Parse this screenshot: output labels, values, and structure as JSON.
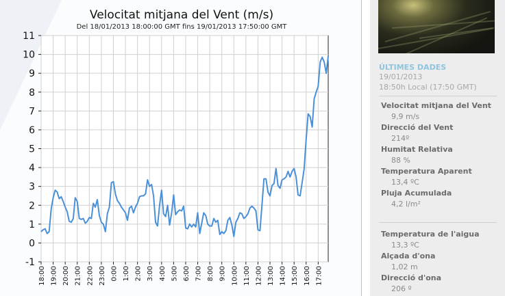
{
  "chart_data": {
    "type": "line",
    "title": "Velocitat mitjana del Vent (m/s)",
    "subtitle": "Del 18/01/2013 18:00:00 GMT fins 19/01/2013 17:50:00 GMT",
    "xlabel": "",
    "ylabel": "",
    "ylim": [
      -1,
      11
    ],
    "yticks": [
      -1,
      0,
      1,
      2,
      3,
      4,
      5,
      6,
      7,
      8,
      9,
      10,
      11
    ],
    "xlim": [
      0,
      1430
    ],
    "xticks": [
      {
        "label": "18:00",
        "t": 0
      },
      {
        "label": "19:00",
        "t": 60
      },
      {
        "label": "20:00",
        "t": 120
      },
      {
        "label": "21:00",
        "t": 180
      },
      {
        "label": "22:00",
        "t": 240
      },
      {
        "label": "23:00",
        "t": 300
      },
      {
        "label": "0:00",
        "t": 360
      },
      {
        "label": "1:00",
        "t": 420
      },
      {
        "label": "2:00",
        "t": 480
      },
      {
        "label": "3:00",
        "t": 540
      },
      {
        "label": "4:00",
        "t": 600
      },
      {
        "label": "5:00",
        "t": 660
      },
      {
        "label": "6:00",
        "t": 720
      },
      {
        "label": "7:00",
        "t": 780
      },
      {
        "label": "8:00",
        "t": 840
      },
      {
        "label": "9:00",
        "t": 900
      },
      {
        "label": "10:00",
        "t": 960
      },
      {
        "label": "11:00",
        "t": 1020
      },
      {
        "label": "12:00",
        "t": 1080
      },
      {
        "label": "13:00",
        "t": 1140
      },
      {
        "label": "14:00",
        "t": 1200
      },
      {
        "label": "15:00",
        "t": 1260
      },
      {
        "label": "16:00",
        "t": 1320
      },
      {
        "label": "17:00",
        "t": 1380
      }
    ],
    "grid": true,
    "line_color": "#4a90d9",
    "series": [
      {
        "values": [
          [
            0,
            0.6
          ],
          [
            10,
            0.7
          ],
          [
            20,
            0.75
          ],
          [
            30,
            0.5
          ],
          [
            40,
            0.6
          ],
          [
            50,
            1.8
          ],
          [
            60,
            2.4
          ],
          [
            70,
            2.8
          ],
          [
            80,
            2.7
          ],
          [
            90,
            2.35
          ],
          [
            100,
            2.45
          ],
          [
            110,
            2.2
          ],
          [
            120,
            1.9
          ],
          [
            130,
            1.65
          ],
          [
            140,
            1.15
          ],
          [
            150,
            1.1
          ],
          [
            160,
            1.3
          ],
          [
            170,
            2.4
          ],
          [
            180,
            2.2
          ],
          [
            190,
            1.3
          ],
          [
            200,
            1.25
          ],
          [
            210,
            1.3
          ],
          [
            220,
            1.05
          ],
          [
            230,
            1.15
          ],
          [
            240,
            1.35
          ],
          [
            250,
            1.3
          ],
          [
            260,
            2.1
          ],
          [
            270,
            1.9
          ],
          [
            280,
            2.3
          ],
          [
            290,
            1.45
          ],
          [
            300,
            1.1
          ],
          [
            310,
            1.0
          ],
          [
            320,
            0.6
          ],
          [
            330,
            1.55
          ],
          [
            340,
            1.9
          ],
          [
            350,
            3.2
          ],
          [
            360,
            3.25
          ],
          [
            370,
            2.6
          ],
          [
            380,
            2.25
          ],
          [
            390,
            2.1
          ],
          [
            400,
            1.9
          ],
          [
            410,
            1.75
          ],
          [
            420,
            1.6
          ],
          [
            430,
            1.2
          ],
          [
            440,
            1.85
          ],
          [
            450,
            1.95
          ],
          [
            460,
            1.6
          ],
          [
            470,
            1.9
          ],
          [
            480,
            2.1
          ],
          [
            490,
            2.45
          ],
          [
            500,
            2.5
          ],
          [
            510,
            2.5
          ],
          [
            520,
            2.6
          ],
          [
            530,
            3.35
          ],
          [
            540,
            3.0
          ],
          [
            550,
            3.1
          ],
          [
            560,
            2.5
          ],
          [
            570,
            1.1
          ],
          [
            580,
            0.9
          ],
          [
            590,
            2.0
          ],
          [
            600,
            2.8
          ],
          [
            610,
            1.55
          ],
          [
            620,
            1.4
          ],
          [
            630,
            2.0
          ],
          [
            640,
            0.95
          ],
          [
            650,
            1.6
          ],
          [
            660,
            2.55
          ],
          [
            670,
            1.5
          ],
          [
            680,
            1.65
          ],
          [
            690,
            1.75
          ],
          [
            700,
            1.7
          ],
          [
            710,
            1.95
          ],
          [
            720,
            0.8
          ],
          [
            730,
            0.75
          ],
          [
            740,
            1.0
          ],
          [
            750,
            0.85
          ],
          [
            760,
            1.0
          ],
          [
            770,
            0.85
          ],
          [
            780,
            1.6
          ],
          [
            790,
            0.5
          ],
          [
            800,
            1.05
          ],
          [
            810,
            1.6
          ],
          [
            820,
            1.45
          ],
          [
            830,
            1.0
          ],
          [
            840,
            0.9
          ],
          [
            850,
            0.9
          ],
          [
            860,
            1.3
          ],
          [
            870,
            1.1
          ],
          [
            880,
            1.2
          ],
          [
            890,
            0.45
          ],
          [
            900,
            0.6
          ],
          [
            910,
            0.5
          ],
          [
            920,
            0.65
          ],
          [
            930,
            1.2
          ],
          [
            940,
            1.35
          ],
          [
            950,
            0.95
          ],
          [
            960,
            0.35
          ],
          [
            970,
            1.1
          ],
          [
            980,
            1.3
          ],
          [
            990,
            1.6
          ],
          [
            1000,
            1.55
          ],
          [
            1010,
            1.3
          ],
          [
            1020,
            1.4
          ],
          [
            1030,
            1.55
          ],
          [
            1040,
            1.85
          ],
          [
            1050,
            1.95
          ],
          [
            1060,
            1.85
          ],
          [
            1070,
            1.7
          ],
          [
            1080,
            0.7
          ],
          [
            1090,
            0.65
          ],
          [
            1100,
            2.0
          ],
          [
            1110,
            3.4
          ],
          [
            1120,
            3.4
          ],
          [
            1130,
            2.7
          ],
          [
            1140,
            2.5
          ],
          [
            1150,
            3.05
          ],
          [
            1160,
            3.15
          ],
          [
            1170,
            3.95
          ],
          [
            1180,
            3.05
          ],
          [
            1190,
            2.9
          ],
          [
            1200,
            3.35
          ],
          [
            1210,
            3.4
          ],
          [
            1220,
            3.5
          ],
          [
            1230,
            3.8
          ],
          [
            1240,
            3.5
          ],
          [
            1250,
            3.8
          ],
          [
            1260,
            3.95
          ],
          [
            1270,
            3.5
          ],
          [
            1280,
            2.55
          ],
          [
            1290,
            2.5
          ],
          [
            1300,
            3.2
          ],
          [
            1310,
            3.9
          ],
          [
            1320,
            5.5
          ],
          [
            1330,
            6.85
          ],
          [
            1340,
            6.7
          ],
          [
            1350,
            6.15
          ],
          [
            1360,
            7.65
          ],
          [
            1370,
            8.0
          ],
          [
            1380,
            8.3
          ],
          [
            1390,
            9.6
          ],
          [
            1400,
            9.85
          ],
          [
            1410,
            9.6
          ],
          [
            1420,
            9.0
          ],
          [
            1430,
            9.9
          ]
        ]
      }
    ]
  },
  "sidebar": {
    "webcam_alt": "webcam-image",
    "section_title": "ÚLTIMES DADES",
    "date": "19/01/2013",
    "time": "18:50h Local  (17:50 GMT)",
    "group1": [
      {
        "label": "Velocitat mitjana del Vent",
        "value": "9,9 m/s"
      },
      {
        "label": "Direcció del Vent",
        "value": "214º"
      },
      {
        "label": "Humitat Relativa",
        "value": "88 %"
      },
      {
        "label": "Temperatura Aparent",
        "value": "13,4 ºC"
      },
      {
        "label": "Pluja Acumulada",
        "value": "4,2 l/m²"
      }
    ],
    "group2": [
      {
        "label": "Temperatura de l'aigua",
        "value": "13,3 ºC"
      },
      {
        "label": "Alçada d'ona",
        "value": "1,02 m"
      },
      {
        "label": "Direcció d'ona",
        "value": "206 º"
      }
    ]
  }
}
